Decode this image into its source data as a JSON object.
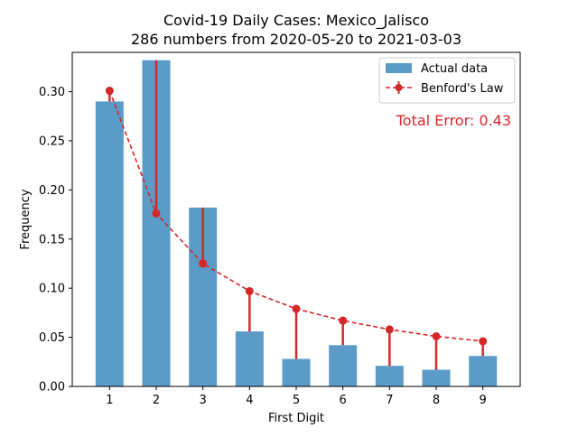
{
  "chart_data": {
    "type": "bar",
    "title_line1": "Covid-19 Daily Cases: Mexico_Jalisco",
    "title_line2": "286 numbers from 2020-05-20 to 2021-03-03",
    "xlabel": "First Digit",
    "ylabel": "Frequency",
    "categories": [
      "1",
      "2",
      "3",
      "4",
      "5",
      "6",
      "7",
      "8",
      "9"
    ],
    "x": [
      1,
      2,
      3,
      4,
      5,
      6,
      7,
      8,
      9
    ],
    "ylim": [
      0,
      0.34
    ],
    "yticks": [
      0.0,
      0.05,
      0.1,
      0.15,
      0.2,
      0.25,
      0.3
    ],
    "ytick_labels": [
      "0.00",
      "0.05",
      "0.10",
      "0.15",
      "0.20",
      "0.25",
      "0.30"
    ],
    "series": [
      {
        "name": "Actual data",
        "kind": "bar",
        "color": "#5b9bc8",
        "values": [
          0.29,
          0.332,
          0.182,
          0.056,
          0.028,
          0.042,
          0.021,
          0.017,
          0.031
        ]
      },
      {
        "name": "Benford's Law",
        "kind": "line-errorbar",
        "color": "#d62728",
        "values": [
          0.301,
          0.176,
          0.125,
          0.097,
          0.079,
          0.067,
          0.058,
          0.051,
          0.046
        ]
      }
    ],
    "annotation": "Total Error: 0.43",
    "legend_position": "top-right"
  }
}
